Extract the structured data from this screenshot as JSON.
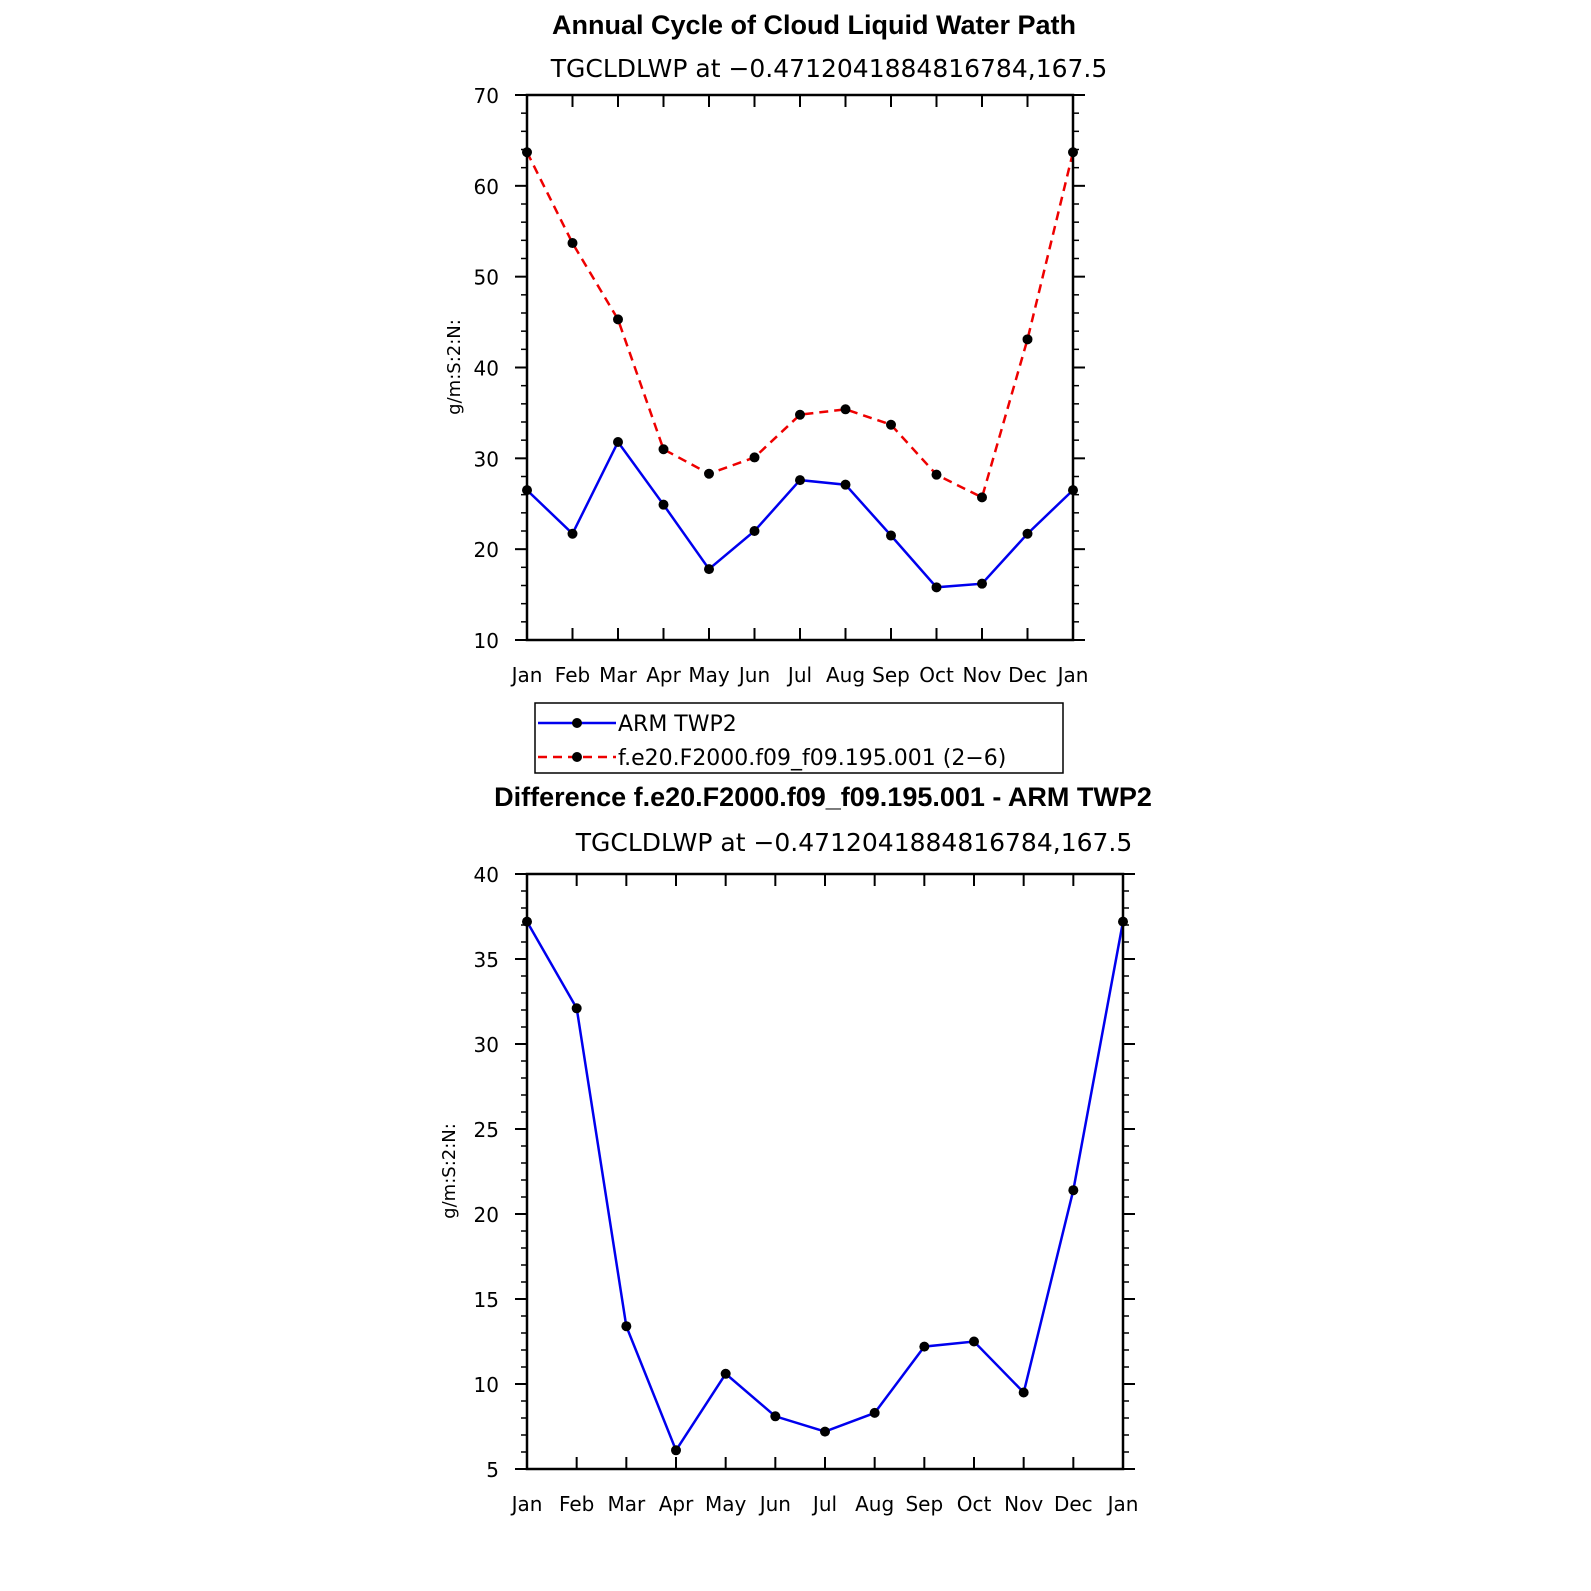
{
  "chart_data": [
    {
      "type": "line",
      "title": "Annual Cycle of Cloud Liquid Water Path",
      "subtitle": "TGCLDLWP  at  −0.4712041884816784,167.5",
      "xlabel": "",
      "ylabel": "g/m:S:2:N:",
      "categories": [
        "Jan",
        "Feb",
        "Mar",
        "Apr",
        "May",
        "Jun",
        "Jul",
        "Aug",
        "Sep",
        "Oct",
        "Nov",
        "Dec",
        "Jan"
      ],
      "ylim": [
        10,
        70
      ],
      "yticks": [
        10,
        20,
        30,
        40,
        50,
        60,
        70
      ],
      "ytick_labels": [
        "10",
        "20",
        "30",
        "40",
        "50",
        "60",
        "70"
      ],
      "series": [
        {
          "name": "ARM  TWP2",
          "color": "#0000ee",
          "dashed": false,
          "values": [
            26.5,
            21.7,
            31.8,
            24.9,
            17.8,
            22.0,
            27.6,
            27.1,
            21.5,
            15.8,
            16.2,
            21.7,
            26.5
          ]
        },
        {
          "name": "f.e20.F2000.f09_f09.195.001 (2−6)",
          "color": "#ee0000",
          "dashed": true,
          "values": [
            63.7,
            53.7,
            45.3,
            31.0,
            28.3,
            30.1,
            34.8,
            35.4,
            33.7,
            28.2,
            25.7,
            43.1,
            63.7
          ]
        }
      ],
      "legend": "bottom"
    },
    {
      "type": "line",
      "title": "Difference f.e20.F2000.f09_f09.195.001 - ARM TWP2",
      "subtitle": "TGCLDLWP  at  −0.4712041884816784,167.5",
      "xlabel": "",
      "ylabel": "g/m:S:2:N:",
      "categories": [
        "Jan",
        "Feb",
        "Mar",
        "Apr",
        "May",
        "Jun",
        "Jul",
        "Aug",
        "Sep",
        "Oct",
        "Nov",
        "Dec",
        "Jan"
      ],
      "ylim": [
        5,
        40
      ],
      "yticks": [
        5,
        10,
        15,
        20,
        25,
        30,
        35,
        40
      ],
      "ytick_labels": [
        "5",
        "10",
        "15",
        "20",
        "25",
        "30",
        "35",
        "40"
      ],
      "series": [
        {
          "name": "Difference",
          "color": "#0000ee",
          "dashed": false,
          "values": [
            37.2,
            32.1,
            13.4,
            6.1,
            10.6,
            8.1,
            7.2,
            8.3,
            12.2,
            12.5,
            9.5,
            21.4,
            37.2
          ]
        }
      ]
    }
  ]
}
